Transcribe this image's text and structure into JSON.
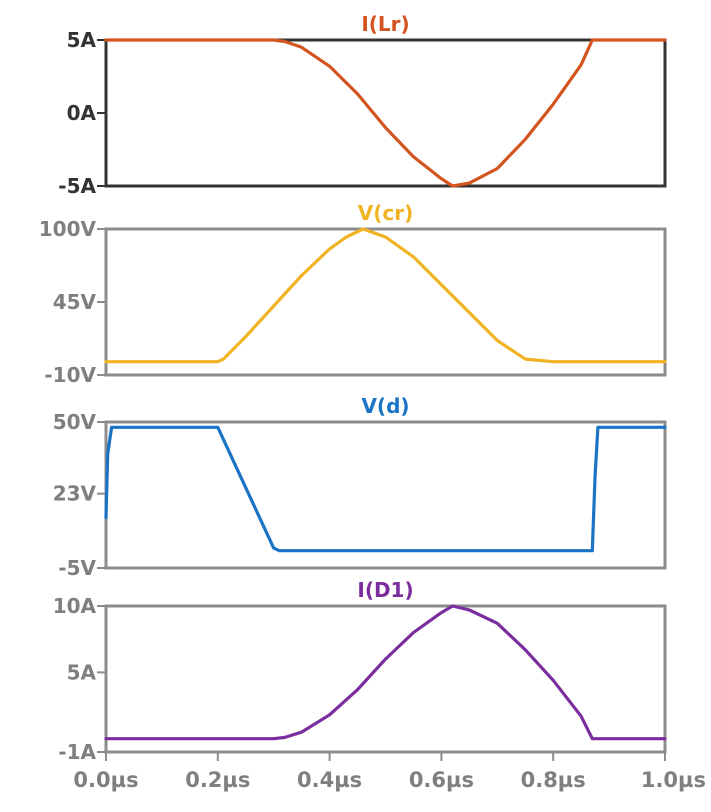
{
  "chart_data": [
    {
      "type": "line",
      "title": "I(Lr)",
      "ylim": [
        -5,
        5
      ],
      "y_ticks": [
        "5A",
        "0A",
        "-5A"
      ],
      "tick_values": [
        5,
        0,
        -5
      ],
      "series": [
        {
          "name": "I(Lr)",
          "color": "#d4541f",
          "x": [
            0,
            0.3,
            0.32,
            0.35,
            0.4,
            0.45,
            0.5,
            0.55,
            0.6,
            0.62,
            0.65,
            0.7,
            0.75,
            0.8,
            0.85,
            0.87,
            0.9,
            1.0
          ],
          "y": [
            5,
            5,
            4.9,
            4.5,
            3.2,
            1.3,
            -1.0,
            -3.0,
            -4.5,
            -5.0,
            -4.8,
            -3.8,
            -1.8,
            0.6,
            3.3,
            5,
            5,
            5
          ]
        }
      ],
      "frame_color": "#333333",
      "title_color": "#d4541f"
    },
    {
      "type": "line",
      "title": "V(cr)",
      "ylim": [
        -10,
        100
      ],
      "y_ticks": [
        "100V",
        "45V",
        "-10V"
      ],
      "tick_values": [
        100,
        45,
        -10
      ],
      "series": [
        {
          "name": "V(cr)",
          "color": "#f0b323",
          "x": [
            0,
            0.2,
            0.21,
            0.25,
            0.3,
            0.35,
            0.4,
            0.43,
            0.46,
            0.5,
            0.55,
            0.6,
            0.65,
            0.7,
            0.75,
            0.8,
            1.0
          ],
          "y": [
            0,
            0,
            2,
            19,
            42,
            65,
            85,
            94,
            100,
            94,
            79,
            58,
            37,
            16,
            2,
            0,
            0
          ]
        }
      ],
      "frame_color": "#8c8c8c",
      "title_color": "#f0b323"
    },
    {
      "type": "line",
      "title": "V(d)",
      "ylim": [
        -5,
        50
      ],
      "y_ticks": [
        "50V",
        "23V",
        "-5V"
      ],
      "tick_values": [
        50,
        23,
        -5
      ],
      "series": [
        {
          "name": "V(d)",
          "color": "#1a73c4",
          "x": [
            0,
            0.003,
            0.01,
            0.2,
            0.3,
            0.31,
            0.5,
            0.87,
            0.875,
            0.88,
            1.0
          ],
          "y": [
            14,
            38,
            48,
            48,
            2.5,
            1.5,
            1.5,
            1.5,
            30,
            48,
            48
          ]
        }
      ],
      "frame_color": "#8c8c8c",
      "title_color": "#1a73c4"
    },
    {
      "type": "line",
      "title": "I(D1)",
      "ylim": [
        -1,
        10
      ],
      "y_ticks": [
        "10A",
        "5A",
        "-1A"
      ],
      "tick_values": [
        10,
        5,
        -1
      ],
      "series": [
        {
          "name": "I(D1)",
          "color": "#7b2d9e",
          "x": [
            0,
            0.3,
            0.32,
            0.35,
            0.4,
            0.45,
            0.5,
            0.55,
            0.6,
            0.62,
            0.65,
            0.7,
            0.75,
            0.8,
            0.85,
            0.87,
            1.0
          ],
          "y": [
            0,
            0,
            0.1,
            0.5,
            1.8,
            3.7,
            6.0,
            8.0,
            9.5,
            10.0,
            9.7,
            8.7,
            6.7,
            4.4,
            1.7,
            0,
            0
          ]
        }
      ],
      "frame_color": "#8c8c8c",
      "title_color": "#7b2d9e"
    }
  ],
  "x_axis": {
    "xlim": [
      0,
      1.0
    ],
    "tick_values": [
      0,
      0.2,
      0.4,
      0.6,
      0.8,
      1.0
    ],
    "tick_labels": [
      "0.0µs",
      "0.2µs",
      "0.4µs",
      "0.6µs",
      "0.8µs",
      "1.0µs"
    ]
  },
  "colors": {
    "tick_label": "#7f7f7f",
    "first_panel_tick_label": "#333333"
  }
}
